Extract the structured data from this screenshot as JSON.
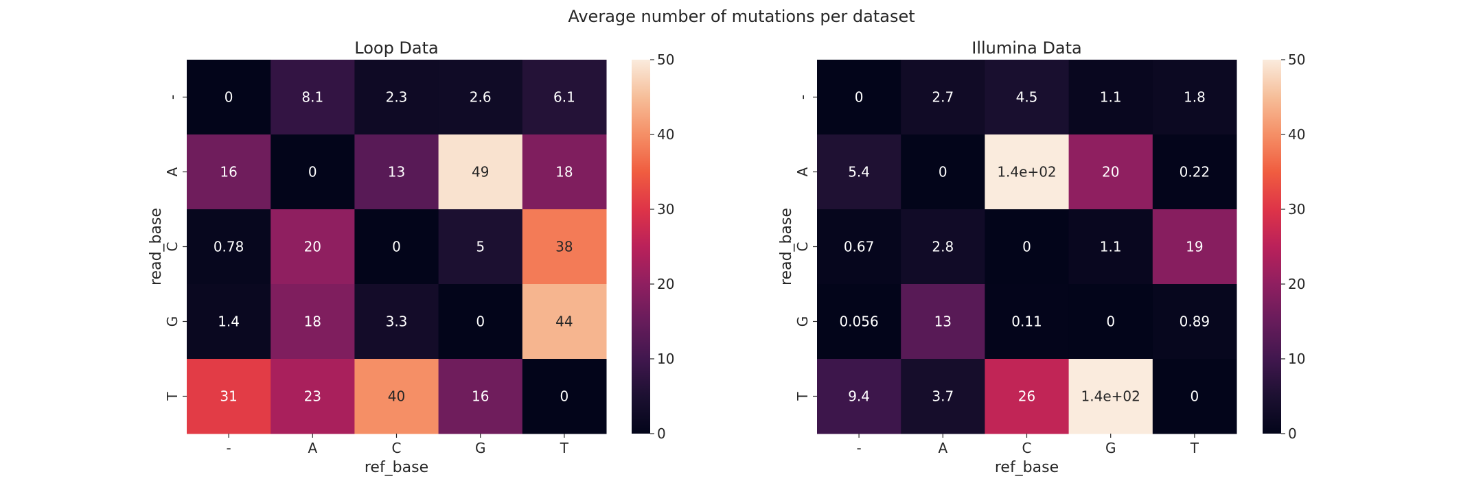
{
  "figure": {
    "suptitle": "Average number of mutations per dataset"
  },
  "chart_data": [
    {
      "type": "heatmap",
      "title": "Loop Data",
      "xlabel": "ref_base",
      "ylabel": "read_base",
      "x_categories": [
        "-",
        "A",
        "C",
        "G",
        "T"
      ],
      "y_categories": [
        "-",
        "A",
        "C",
        "G",
        "T"
      ],
      "values": [
        [
          0,
          8.1,
          2.3,
          2.6,
          6.1
        ],
        [
          16,
          0,
          13,
          49,
          18
        ],
        [
          0.78,
          20,
          0,
          5,
          38
        ],
        [
          1.4,
          18,
          3.3,
          0,
          44
        ],
        [
          31,
          23,
          40,
          16,
          0
        ]
      ],
      "annotations": [
        [
          "0",
          "8.1",
          "2.3",
          "2.6",
          "6.1"
        ],
        [
          "16",
          "0",
          "13",
          "49",
          "18"
        ],
        [
          "0.78",
          "20",
          "0",
          "5",
          "38"
        ],
        [
          "1.4",
          "18",
          "3.3",
          "0",
          "44"
        ],
        [
          "31",
          "23",
          "40",
          "16",
          "0"
        ]
      ],
      "colorbar": {
        "min": 0,
        "max": 50,
        "ticks": [
          "0",
          "10",
          "20",
          "30",
          "40",
          "50"
        ]
      },
      "colormap": "rocket"
    },
    {
      "type": "heatmap",
      "title": "Illumina Data",
      "xlabel": "ref_base",
      "ylabel": "read_base",
      "x_categories": [
        "-",
        "A",
        "C",
        "G",
        "T"
      ],
      "y_categories": [
        "-",
        "A",
        "C",
        "G",
        "T"
      ],
      "values": [
        [
          0,
          2.7,
          4.5,
          1.1,
          1.8
        ],
        [
          5.4,
          0,
          140,
          20,
          0.22
        ],
        [
          0.67,
          2.8,
          0,
          1.1,
          19
        ],
        [
          0.056,
          13,
          0.11,
          0,
          0.89
        ],
        [
          9.4,
          3.7,
          26,
          140,
          0
        ]
      ],
      "annotations": [
        [
          "0",
          "2.7",
          "4.5",
          "1.1",
          "1.8"
        ],
        [
          "5.4",
          "0",
          "1.4e+02",
          "20",
          "0.22"
        ],
        [
          "0.67",
          "2.8",
          "0",
          "1.1",
          "19"
        ],
        [
          "0.056",
          "13",
          "0.11",
          "0",
          "0.89"
        ],
        [
          "9.4",
          "3.7",
          "26",
          "1.4e+02",
          "0"
        ]
      ],
      "colorbar": {
        "min": 0,
        "max": 50,
        "ticks": [
          "0",
          "10",
          "20",
          "30",
          "40",
          "50"
        ]
      },
      "colormap": "rocket"
    }
  ]
}
